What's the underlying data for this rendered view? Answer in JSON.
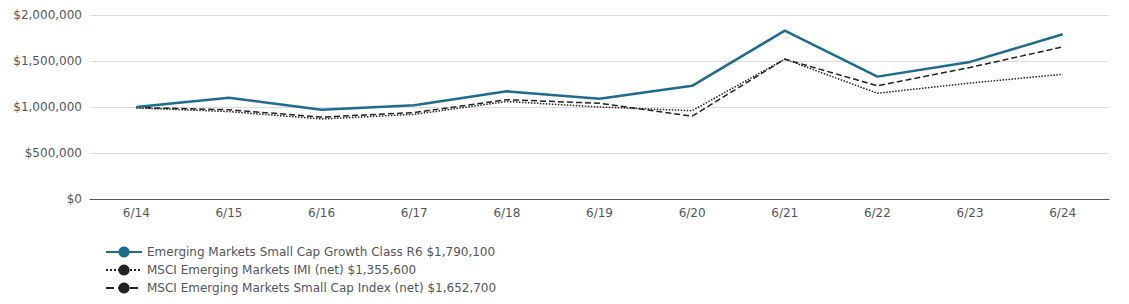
{
  "chart_data": {
    "type": "line",
    "categories": [
      "6/14",
      "6/15",
      "6/16",
      "6/17",
      "6/18",
      "6/19",
      "6/20",
      "6/21",
      "6/22",
      "6/23",
      "6/24"
    ],
    "series": [
      {
        "name": "Emerging Markets Small Cap Growth Class R6 $1,790,100",
        "color": "#1f6b8e",
        "line_style": "solid",
        "values": [
          1000000,
          1100000,
          970000,
          1020000,
          1170000,
          1090000,
          1230000,
          1830000,
          1330000,
          1490000,
          1790100
        ]
      },
      {
        "name": "MSCI Emerging Markets IMI (net) $1,355,600",
        "color": "#222222",
        "line_style": "dotted",
        "values": [
          990000,
          950000,
          870000,
          920000,
          1060000,
          1000000,
          960000,
          1520000,
          1150000,
          1260000,
          1355600
        ]
      },
      {
        "name": "MSCI Emerging Markets Small Cap Index (net) $1,652,700",
        "color": "#222222",
        "line_style": "dashed",
        "values": [
          995000,
          970000,
          890000,
          940000,
          1080000,
          1040000,
          900000,
          1520000,
          1230000,
          1430000,
          1652700
        ]
      }
    ],
    "ylim": [
      0,
      2000000
    ],
    "yticks": [
      {
        "value": 0,
        "label": "$0"
      },
      {
        "value": 500000,
        "label": "$500,000"
      },
      {
        "value": 1000000,
        "label": "$1,000,000"
      },
      {
        "value": 1500000,
        "label": "$1,500,000"
      },
      {
        "value": 2000000,
        "label": "$2,000,000"
      }
    ],
    "grid": true,
    "legend": "bottom"
  }
}
